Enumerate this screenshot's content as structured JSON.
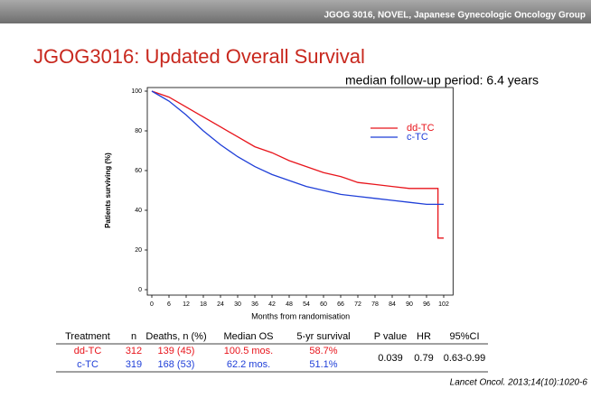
{
  "header": "JGOG 3016, NOVEL, Japanese Gynecologic Oncology Group",
  "title": "JGOG3016: Updated Overall Survival",
  "subtitle": "median follow-up period: 6.4 years",
  "chart_data": {
    "type": "line",
    "y_label": "Patients surviving (%)",
    "x_label": "Months from randomisation",
    "xlim": [
      0,
      104
    ],
    "ylim": [
      0,
      100
    ],
    "xticks": [
      0,
      6,
      12,
      18,
      24,
      30,
      36,
      42,
      48,
      54,
      60,
      66,
      72,
      78,
      84,
      90,
      96,
      102
    ],
    "yticks": [
      0,
      20,
      40,
      60,
      80,
      100
    ],
    "legend": "upper right",
    "series": [
      {
        "name": "dd-TC",
        "color": "#e8141b",
        "x": [
          0,
          6,
          12,
          18,
          24,
          30,
          36,
          42,
          48,
          54,
          60,
          66,
          72,
          78,
          84,
          90,
          96,
          100,
          100,
          102
        ],
        "values": [
          100,
          97,
          92,
          87,
          82,
          77,
          72,
          69,
          65,
          62,
          59,
          57,
          54,
          53,
          52,
          51,
          51,
          51,
          26,
          26
        ]
      },
      {
        "name": "c-TC",
        "color": "#1f3fd8",
        "x": [
          0,
          6,
          12,
          18,
          24,
          30,
          36,
          42,
          48,
          54,
          60,
          66,
          72,
          78,
          84,
          90,
          96,
          102
        ],
        "values": [
          100,
          95,
          88,
          80,
          73,
          67,
          62,
          58,
          55,
          52,
          50,
          48,
          47,
          46,
          45,
          44,
          43,
          43
        ]
      }
    ]
  },
  "table": {
    "header": [
      "Treatment",
      "n",
      "Deaths, n (%)",
      "Median OS",
      "5-yr survival",
      "P value",
      "HR",
      "95%CI"
    ],
    "rows": [
      [
        "dd-TC",
        "312",
        "139 (45)",
        "100.5 mos.",
        "58.7%"
      ],
      [
        "c-TC",
        "319",
        "168 (53)",
        "62.2 mos.",
        "51.1%"
      ]
    ],
    "shared": [
      "0.039",
      "0.79",
      "0.63-0.99"
    ]
  },
  "citation": "Lancet Oncol. 2013;14(10):1020-6"
}
